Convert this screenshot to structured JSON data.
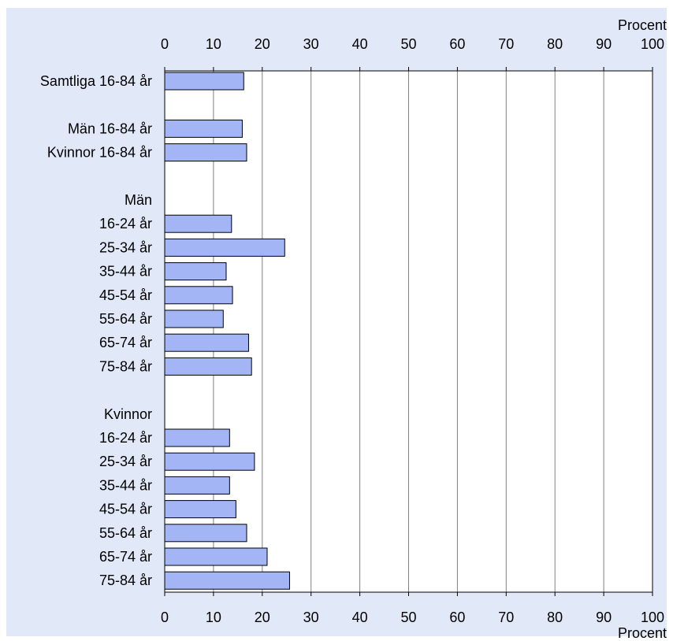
{
  "chart_data": {
    "type": "bar",
    "orientation": "horizontal",
    "unit_label": "Procent",
    "xlim": [
      0,
      100
    ],
    "xticks": [
      0,
      10,
      20,
      30,
      40,
      50,
      60,
      70,
      80,
      90,
      100
    ],
    "grid": true,
    "rows": [
      {
        "label": "Samtliga 16-84 år",
        "value": 16.2
      },
      {
        "label": "",
        "value": null
      },
      {
        "label": "Män 16-84 år",
        "value": 15.9
      },
      {
        "label": "Kvinnor 16-84 år",
        "value": 16.8
      },
      {
        "label": "",
        "value": null
      },
      {
        "label": "Män",
        "value": null
      },
      {
        "label": "16-24 år",
        "value": 13.7
      },
      {
        "label": "25-34 år",
        "value": 24.6
      },
      {
        "label": "35-44 år",
        "value": 12.6
      },
      {
        "label": "45-54 år",
        "value": 13.9
      },
      {
        "label": "55-64 år",
        "value": 12.0
      },
      {
        "label": "65-74 år",
        "value": 17.2
      },
      {
        "label": "75-84 år",
        "value": 17.8
      },
      {
        "label": "",
        "value": null
      },
      {
        "label": "Kvinnor",
        "value": null
      },
      {
        "label": "16-24 år",
        "value": 13.3
      },
      {
        "label": "25-34 år",
        "value": 18.4
      },
      {
        "label": "35-44 år",
        "value": 13.3
      },
      {
        "label": "45-54 år",
        "value": 14.6
      },
      {
        "label": "55-64 år",
        "value": 16.8
      },
      {
        "label": "65-74 år",
        "value": 21.0
      },
      {
        "label": "75-84 år",
        "value": 25.6
      }
    ],
    "bar_color": "#a3b5f5",
    "bar_border": "#000000",
    "gridline_color": "#808080"
  }
}
